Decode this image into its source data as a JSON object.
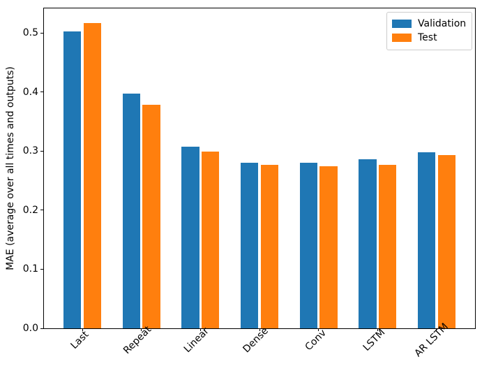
{
  "figure": {
    "background": "#ffffff",
    "axis_color": "#000000",
    "legend_border_color": "#cccccc"
  },
  "chart_data": {
    "type": "bar",
    "title": "",
    "xlabel": "",
    "ylabel": "MAE (average over all times and outputs)",
    "categories": [
      "Last",
      "Repeat",
      "Linear",
      "Dense",
      "Conv",
      "LSTM",
      "AR LSTM"
    ],
    "series": [
      {
        "name": "Validation",
        "color": "#1f77b4",
        "values": [
          0.503,
          0.397,
          0.307,
          0.28,
          0.28,
          0.286,
          0.298
        ]
      },
      {
        "name": "Test",
        "color": "#ff7f0e",
        "values": [
          0.517,
          0.378,
          0.299,
          0.277,
          0.274,
          0.277,
          0.293
        ]
      }
    ],
    "bar_width": 0.3,
    "series_offsets": [
      -0.17,
      0.17
    ],
    "xlim": [
      -0.652,
      6.652
    ],
    "ylim": [
      0,
      0.5415
    ],
    "yticks": [
      {
        "value": 0.0,
        "label": "0.0"
      },
      {
        "value": 0.1,
        "label": "0.1"
      },
      {
        "value": 0.2,
        "label": "0.2"
      },
      {
        "value": 0.3,
        "label": "0.3"
      },
      {
        "value": 0.4,
        "label": "0.4"
      },
      {
        "value": 0.5,
        "label": "0.5"
      }
    ],
    "xtick_rotation": 45,
    "grid": false,
    "legend": {
      "position": "upper right",
      "entries": [
        "Validation",
        "Test"
      ]
    }
  }
}
